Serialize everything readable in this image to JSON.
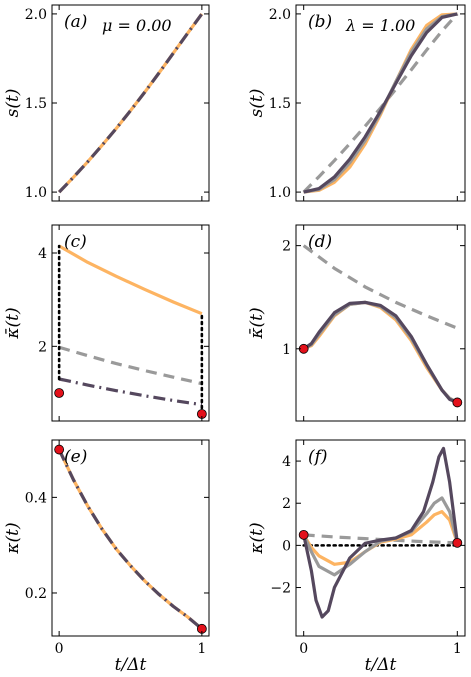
{
  "colors": {
    "orange": "#fdb462",
    "gray": "#9a9a9a",
    "dark": "#55485e",
    "black": "#000000",
    "red": "#e3111b"
  },
  "xlabel": "t/Δt",
  "chart_data": [
    {
      "panel": "(a)",
      "type": "line",
      "annotation": "μ = 0.00",
      "ylabel": "s(t)",
      "xlim": [
        -0.05,
        1.05
      ],
      "ylim": [
        0.95,
        2.05
      ],
      "xticks": [
        0,
        1
      ],
      "yticks": [
        1.0,
        1.5,
        2.0
      ],
      "ytick_labels": [
        "1.0",
        "1.5",
        "2.0"
      ],
      "series": [
        {
          "style": "orange-solid",
          "x": [
            0,
            0.1,
            0.2,
            0.3,
            0.4,
            0.5,
            0.6,
            0.7,
            0.8,
            0.9,
            1.0
          ],
          "y": [
            1.0,
            1.083,
            1.17,
            1.262,
            1.357,
            1.457,
            1.561,
            1.669,
            1.78,
            1.891,
            2.0
          ]
        },
        {
          "style": "dark-dashdot",
          "x": [
            0,
            0.1,
            0.2,
            0.3,
            0.4,
            0.5,
            0.6,
            0.7,
            0.8,
            0.9,
            1.0
          ],
          "y": [
            1.0,
            1.083,
            1.17,
            1.262,
            1.357,
            1.457,
            1.561,
            1.669,
            1.78,
            1.891,
            2.0
          ]
        }
      ]
    },
    {
      "panel": "(b)",
      "type": "line",
      "annotation": "λ = 1.00",
      "ylabel": "s(t)",
      "xlim": [
        -0.05,
        1.05
      ],
      "ylim": [
        0.95,
        2.05
      ],
      "xticks": [
        0,
        1
      ],
      "yticks": [
        1.0,
        1.5,
        2.0
      ],
      "ytick_labels": [
        "1.0",
        "1.5",
        "2.0"
      ],
      "series": [
        {
          "style": "gray-dashed",
          "x": [
            0,
            0.1,
            0.2,
            0.3,
            0.4,
            0.5,
            0.6,
            0.7,
            0.8,
            0.9,
            1.0
          ],
          "y": [
            1.0,
            1.087,
            1.177,
            1.272,
            1.37,
            1.472,
            1.578,
            1.686,
            1.797,
            1.904,
            2.0
          ]
        },
        {
          "style": "orange-solid",
          "x": [
            0,
            0.1,
            0.2,
            0.3,
            0.4,
            0.5,
            0.6,
            0.7,
            0.8,
            0.9,
            1.0
          ],
          "y": [
            1.0,
            1.01,
            1.055,
            1.14,
            1.27,
            1.435,
            1.62,
            1.8,
            1.935,
            1.995,
            2.0
          ]
        },
        {
          "style": "gray-solid",
          "x": [
            0,
            0.1,
            0.2,
            0.3,
            0.4,
            0.5,
            0.6,
            0.7,
            0.8,
            0.9,
            1.0
          ],
          "y": [
            1.0,
            1.015,
            1.07,
            1.165,
            1.29,
            1.445,
            1.62,
            1.785,
            1.915,
            1.985,
            2.0
          ]
        },
        {
          "style": "dark-solid",
          "x": [
            0,
            0.1,
            0.2,
            0.3,
            0.4,
            0.5,
            0.6,
            0.7,
            0.8,
            0.9,
            1.0
          ],
          "y": [
            1.0,
            1.02,
            1.085,
            1.185,
            1.31,
            1.455,
            1.61,
            1.765,
            1.895,
            1.98,
            2.0
          ]
        }
      ]
    },
    {
      "panel": "(c)",
      "type": "line",
      "ylabel": "κ̄(t)",
      "xlim": [
        -0.05,
        1.05
      ],
      "ylim": [
        0.4,
        4.6
      ],
      "xticks": [
        0,
        1
      ],
      "yticks": [
        2,
        4
      ],
      "ytick_labels": [
        "2",
        "4"
      ],
      "series": [
        {
          "style": "orange-solid",
          "x": [
            0,
            0.2,
            0.4,
            0.6,
            0.8,
            1.0
          ],
          "y": [
            4.15,
            3.8,
            3.5,
            3.22,
            2.95,
            2.7
          ]
        },
        {
          "style": "gray-dashed",
          "x": [
            0,
            0.2,
            0.4,
            0.6,
            0.8,
            1.0
          ],
          "y": [
            1.98,
            1.8,
            1.63,
            1.48,
            1.34,
            1.2
          ]
        },
        {
          "style": "dark-dashdot",
          "x": [
            0,
            0.2,
            0.4,
            0.6,
            0.8,
            1.0
          ],
          "y": [
            1.3,
            1.17,
            1.05,
            0.94,
            0.84,
            0.75
          ]
        },
        {
          "style": "black-dotted",
          "x": [
            0,
            0
          ],
          "y": [
            1.3,
            4.15
          ]
        },
        {
          "style": "black-dotted",
          "x": [
            1,
            1
          ],
          "y": [
            0.55,
            2.7
          ]
        }
      ],
      "points": [
        {
          "x": 0,
          "y": 1.0
        },
        {
          "x": 1,
          "y": 0.55
        }
      ]
    },
    {
      "panel": "(d)",
      "type": "line",
      "ylabel": "κ̄(t)",
      "xlim": [
        -0.05,
        1.05
      ],
      "ylim": [
        0.3,
        2.2
      ],
      "xticks": [
        0,
        1
      ],
      "yticks": [
        1,
        2
      ],
      "ytick_labels": [
        "1",
        "2"
      ],
      "series": [
        {
          "style": "gray-dashed",
          "x": [
            0,
            0.2,
            0.4,
            0.6,
            0.8,
            1.0
          ],
          "y": [
            2.0,
            1.78,
            1.6,
            1.45,
            1.32,
            1.2
          ]
        },
        {
          "style": "orange-solid",
          "x": [
            0,
            0.05,
            0.1,
            0.2,
            0.3,
            0.4,
            0.5,
            0.6,
            0.7,
            0.8,
            0.9,
            0.95,
            1.0
          ],
          "y": [
            1.0,
            1.03,
            1.12,
            1.32,
            1.43,
            1.45,
            1.4,
            1.28,
            1.08,
            0.82,
            0.6,
            0.52,
            0.48
          ]
        },
        {
          "style": "gray-solid",
          "x": [
            0,
            0.05,
            0.1,
            0.2,
            0.3,
            0.4,
            0.5,
            0.6,
            0.7,
            0.8,
            0.9,
            0.95,
            1.0
          ],
          "y": [
            1.0,
            1.04,
            1.14,
            1.33,
            1.43,
            1.45,
            1.41,
            1.3,
            1.1,
            0.84,
            0.6,
            0.52,
            0.48
          ]
        },
        {
          "style": "dark-solid",
          "x": [
            0,
            0.05,
            0.1,
            0.2,
            0.3,
            0.4,
            0.5,
            0.6,
            0.7,
            0.8,
            0.9,
            0.95,
            1.0
          ],
          "y": [
            1.0,
            1.05,
            1.16,
            1.35,
            1.44,
            1.45,
            1.42,
            1.32,
            1.12,
            0.85,
            0.6,
            0.51,
            0.48
          ]
        }
      ],
      "points": [
        {
          "x": 0,
          "y": 1.0
        },
        {
          "x": 1,
          "y": 0.48
        }
      ]
    },
    {
      "panel": "(e)",
      "type": "line",
      "ylabel": "κ(t)",
      "xlim": [
        -0.05,
        1.05
      ],
      "ylim": [
        0.11,
        0.52
      ],
      "xticks": [
        0,
        1
      ],
      "yticks": [
        0.2,
        0.4
      ],
      "ytick_labels": [
        "0.2",
        "0.4"
      ],
      "series": [
        {
          "style": "orange-solid",
          "x": [
            0,
            0.1,
            0.2,
            0.3,
            0.4,
            0.5,
            0.6,
            0.7,
            0.8,
            0.9,
            1.0
          ],
          "y": [
            0.5,
            0.437,
            0.382,
            0.334,
            0.292,
            0.257,
            0.225,
            0.197,
            0.172,
            0.15,
            0.125
          ]
        },
        {
          "style": "dark-dashdot",
          "x": [
            0,
            0.1,
            0.2,
            0.3,
            0.4,
            0.5,
            0.6,
            0.7,
            0.8,
            0.9,
            1.0
          ],
          "y": [
            0.5,
            0.437,
            0.382,
            0.334,
            0.292,
            0.257,
            0.225,
            0.197,
            0.172,
            0.15,
            0.125
          ]
        }
      ],
      "points": [
        {
          "x": 0,
          "y": 0.5
        },
        {
          "x": 1,
          "y": 0.125
        }
      ]
    },
    {
      "panel": "(f)",
      "type": "line",
      "ylabel": "κ(t)",
      "xlim": [
        -0.05,
        1.05
      ],
      "ylim": [
        -4.3,
        5.0
      ],
      "xticks": [
        0,
        1
      ],
      "yticks": [
        -2,
        0,
        2,
        4
      ],
      "ytick_labels": [
        "−2",
        "0",
        "2",
        "4"
      ],
      "series": [
        {
          "style": "black-dotted",
          "x": [
            0,
            1
          ],
          "y": [
            0,
            0
          ]
        },
        {
          "style": "gray-dashed",
          "x": [
            0,
            0.2,
            0.4,
            0.6,
            0.8,
            1.0
          ],
          "y": [
            0.5,
            0.4,
            0.32,
            0.24,
            0.17,
            0.12
          ]
        },
        {
          "style": "orange-solid",
          "x": [
            0,
            0.05,
            0.1,
            0.2,
            0.3,
            0.4,
            0.5,
            0.6,
            0.7,
            0.8,
            0.85,
            0.9,
            0.95,
            1.0
          ],
          "y": [
            0.5,
            -0.1,
            -0.5,
            -0.9,
            -0.8,
            -0.3,
            0.15,
            0.3,
            0.5,
            1.1,
            1.45,
            1.6,
            1.2,
            0.12
          ]
        },
        {
          "style": "gray-solid",
          "x": [
            0,
            0.05,
            0.1,
            0.2,
            0.3,
            0.4,
            0.5,
            0.6,
            0.7,
            0.8,
            0.85,
            0.9,
            0.95,
            1.0
          ],
          "y": [
            0.5,
            -0.3,
            -1.0,
            -1.4,
            -0.9,
            -0.3,
            0.2,
            0.35,
            0.65,
            1.5,
            2.0,
            2.25,
            1.6,
            0.12
          ]
        },
        {
          "style": "dark-solid",
          "x": [
            0,
            0.05,
            0.08,
            0.12,
            0.16,
            0.2,
            0.3,
            0.4,
            0.5,
            0.6,
            0.7,
            0.78,
            0.84,
            0.88,
            0.91,
            0.95,
            1.0
          ],
          "y": [
            0.5,
            -1.2,
            -2.6,
            -3.4,
            -3.1,
            -2.0,
            -0.6,
            0.1,
            0.25,
            0.35,
            0.7,
            1.6,
            3.0,
            4.2,
            4.6,
            3.0,
            0.12
          ]
        }
      ],
      "points": [
        {
          "x": 0,
          "y": 0.5
        },
        {
          "x": 1,
          "y": 0.12
        }
      ]
    }
  ]
}
